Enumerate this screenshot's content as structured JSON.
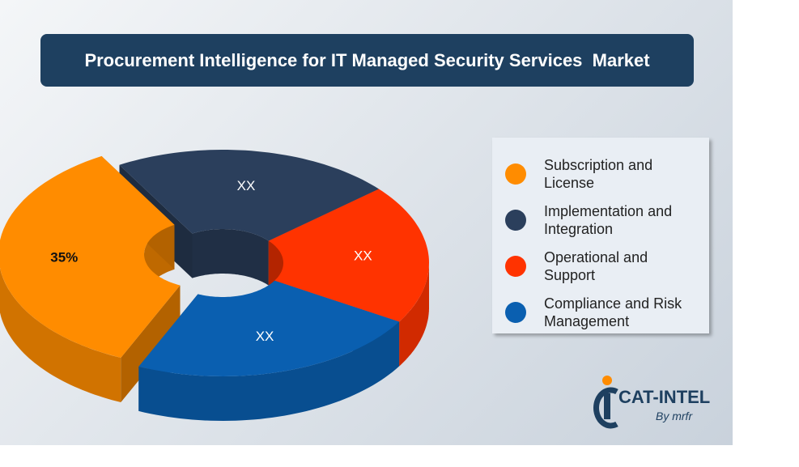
{
  "chart_data": {
    "type": "donut",
    "title": "Procurement Intelligence for IT Managed Security Services  Market",
    "categories": [
      "Subscription and License",
      "Implementation and Integration",
      "Operational and Support",
      "Compliance and Risk Management"
    ],
    "values": [
      35,
      22,
      20,
      23
    ],
    "value_labels": [
      "35%",
      "XX",
      "XX",
      "XX"
    ],
    "colors": [
      "#ff8c00",
      "#2b3f5c",
      "#ff3300",
      "#0a5fb0"
    ],
    "legend": "right"
  },
  "logo": {
    "name": "CAT-INTEL",
    "tagline": "By mrfr"
  }
}
